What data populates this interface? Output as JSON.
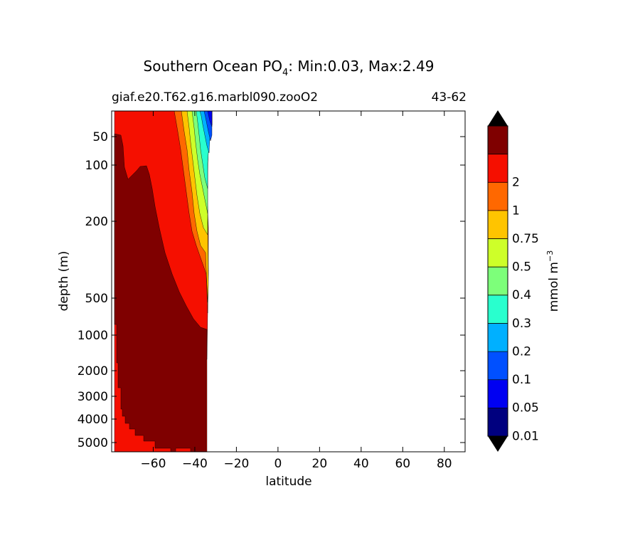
{
  "chart_data": {
    "type": "contourf",
    "title": "Southern Ocean PO",
    "title_subscript": "4",
    "title_suffix": ": Min:0.03, Max:2.49",
    "case_label": "giaf.e20.T62.g16.marbl090.zooO2",
    "years_label": "43-62",
    "xlabel": "latitude",
    "ylabel": "depth (m)",
    "xlim": [
      -80,
      90
    ],
    "x_ticks": [
      -60,
      -40,
      -20,
      0,
      20,
      40,
      60,
      80
    ],
    "x_tick_labels": [
      "−60",
      "−40",
      "−20",
      "0",
      "20",
      "40",
      "60",
      "80"
    ],
    "y_ticks": [
      50,
      100,
      200,
      500,
      1000,
      2000,
      3000,
      4000,
      5000
    ],
    "y_tick_labels": [
      "50",
      "100",
      "200",
      "500",
      "1000",
      "2000",
      "3000",
      "4000",
      "5000"
    ],
    "colorbar": {
      "label": "mmol m",
      "label_exp": "−3",
      "levels": [
        "0.01",
        "0.05",
        "0.1",
        "0.2",
        "0.3",
        "0.4",
        "0.5",
        "0.75",
        "1",
        "2"
      ],
      "colors": [
        "#00007f",
        "#0000f2",
        "#0050ff",
        "#00b0ff",
        "#29ffce",
        "#7dff7a",
        "#ceff29",
        "#ffc400",
        "#ff6800",
        "#f50f00",
        "#7f0000"
      ],
      "extend_color": "#000000"
    },
    "data_extent_note": "",
    "regions": [
      {
        "level": "2",
        "color": "#7f0000"
      },
      {
        "level": "1",
        "color": "#f50f00"
      },
      {
        "level": "0.75",
        "color": "#ff6800"
      },
      {
        "level": "0.5",
        "color": "#ffc400"
      },
      {
        "level": "0.4",
        "color": "#ceff29"
      },
      {
        "level": "0.3",
        "color": "#7dff7a"
      },
      {
        "level": "0.2",
        "color": "#29ffce"
      },
      {
        "level": "0.1",
        "color": "#00b0ff"
      },
      {
        "level": "0.05",
        "color": "#0050ff"
      },
      {
        "level": "0.01",
        "color": "#0000f2"
      }
    ]
  }
}
